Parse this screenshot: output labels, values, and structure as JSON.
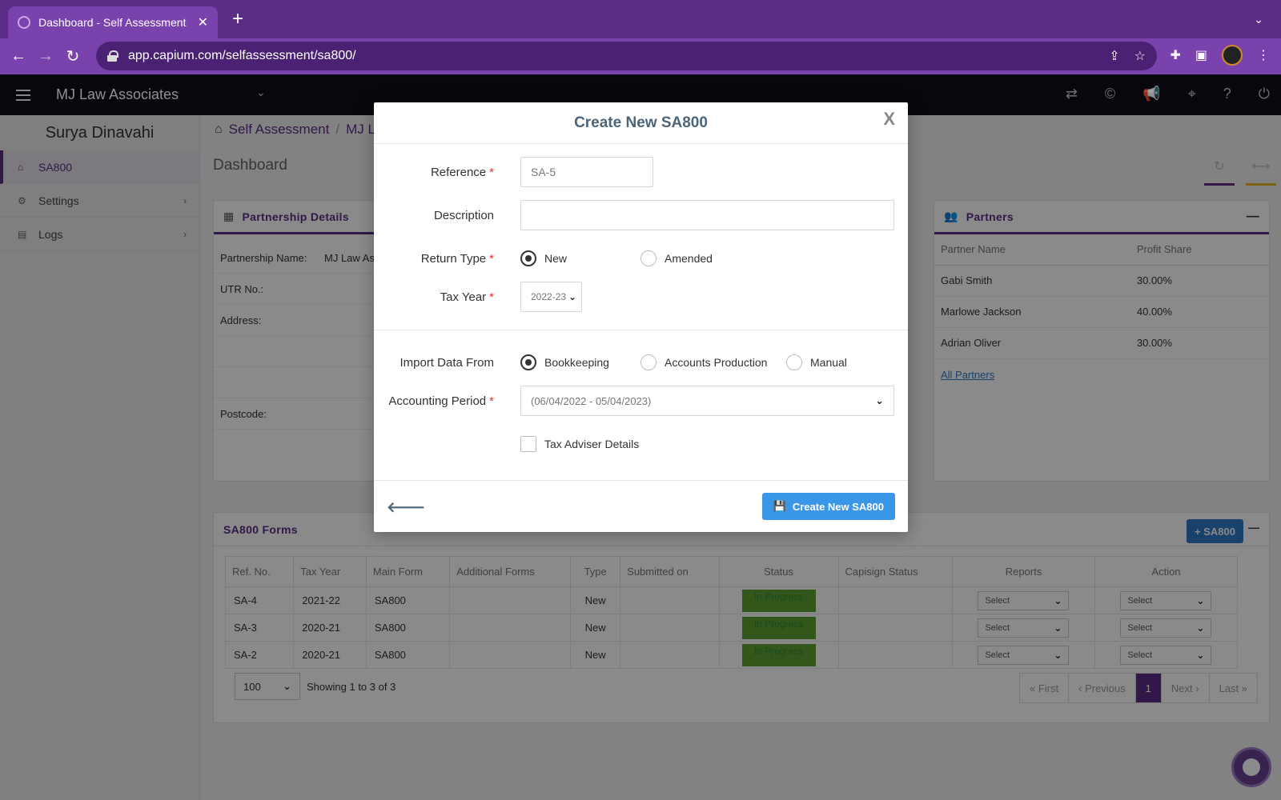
{
  "browser": {
    "tab_title": "Dashboard - Self Assessment",
    "tab_close": "✕",
    "new_tab": "+",
    "url": "app.capium.com/selfassessment/sa800/"
  },
  "header": {
    "company": "MJ Law Associates"
  },
  "sidebar": {
    "user": "Surya Dinavahi",
    "items": [
      {
        "label": "SA800",
        "icon": "home-icon",
        "active": true
      },
      {
        "label": "Settings",
        "icon": "gear-icon"
      },
      {
        "label": "Logs",
        "icon": "file-icon"
      }
    ]
  },
  "breadcrumb": {
    "root": "Self Assessment",
    "sep": "/",
    "current": "MJ L"
  },
  "dashboard": {
    "title": "Dashboard"
  },
  "partnership": {
    "title": "Partnership Details",
    "rows": [
      {
        "label": "Partnership Name:",
        "value": "MJ Law As"
      },
      {
        "label": "UTR No.:",
        "value": ""
      },
      {
        "label": "Address:",
        "value": ""
      },
      {
        "label": "",
        "value": ""
      },
      {
        "label": "",
        "value": ""
      },
      {
        "label": "Postcode:",
        "value": ""
      }
    ]
  },
  "partners": {
    "title": "Partners",
    "collapse": "—",
    "columns": [
      "Partner Name",
      "Profit Share"
    ],
    "rows": [
      {
        "name": "Gabi Smith",
        "share": "30.00%"
      },
      {
        "name": "Marlowe Jackson",
        "share": "40.00%"
      },
      {
        "name": "Adrian Oliver",
        "share": "30.00%"
      }
    ],
    "all_link": "All Partners"
  },
  "forms": {
    "title": "SA800 Forms",
    "add_button": "+ SA800",
    "collapse": "—",
    "columns": [
      "Ref. No.",
      "Tax Year",
      "Main Form",
      "Additional Forms",
      "Type",
      "Submitted on",
      "Status",
      "Capisign Status",
      "Reports",
      "Action"
    ],
    "rows": [
      {
        "ref": "SA-4",
        "year": "2021-22",
        "main": "SA800",
        "additional": "",
        "type": "New",
        "submitted": "",
        "status": "In Progress",
        "capisign": "",
        "reports": "Select",
        "action": "Select"
      },
      {
        "ref": "SA-3",
        "year": "2020-21",
        "main": "SA800",
        "additional": "",
        "type": "New",
        "submitted": "",
        "status": "In Progress",
        "capisign": "",
        "reports": "Select",
        "action": "Select"
      },
      {
        "ref": "SA-2",
        "year": "2020-21",
        "main": "SA800",
        "additional": "",
        "type": "New",
        "submitted": "",
        "status": "In Progress",
        "capisign": "",
        "reports": "Select",
        "action": "Select"
      }
    ],
    "page_size": "100",
    "showing": "Showing 1 to 3 of 3",
    "pager": {
      "first": "« First",
      "prev": "‹ Previous",
      "current": "1",
      "next": "Next ›",
      "last": "Last »"
    }
  },
  "modal": {
    "title": "Create New SA800",
    "close": "X",
    "reference_label": "Reference",
    "reference_placeholder": "SA-5",
    "description_label": "Description",
    "return_type_label": "Return Type",
    "return_new": "New",
    "return_amended": "Amended",
    "tax_year_label": "Tax Year",
    "tax_year_value": "2022-23",
    "import_label": "Import Data From",
    "import_bookkeeping": "Bookkeeping",
    "import_accounts": "Accounts Production",
    "import_manual": "Manual",
    "period_label": "Accounting Period",
    "period_value": "(06/04/2022 - 05/04/2023)",
    "tax_adviser": "Tax Adviser Details",
    "create_button": "Create New SA800",
    "required_mark": "*"
  },
  "colors": {
    "brand_purple": "#5b2d86",
    "primary_blue": "#3a97e8",
    "status_green": "#5fa032"
  }
}
